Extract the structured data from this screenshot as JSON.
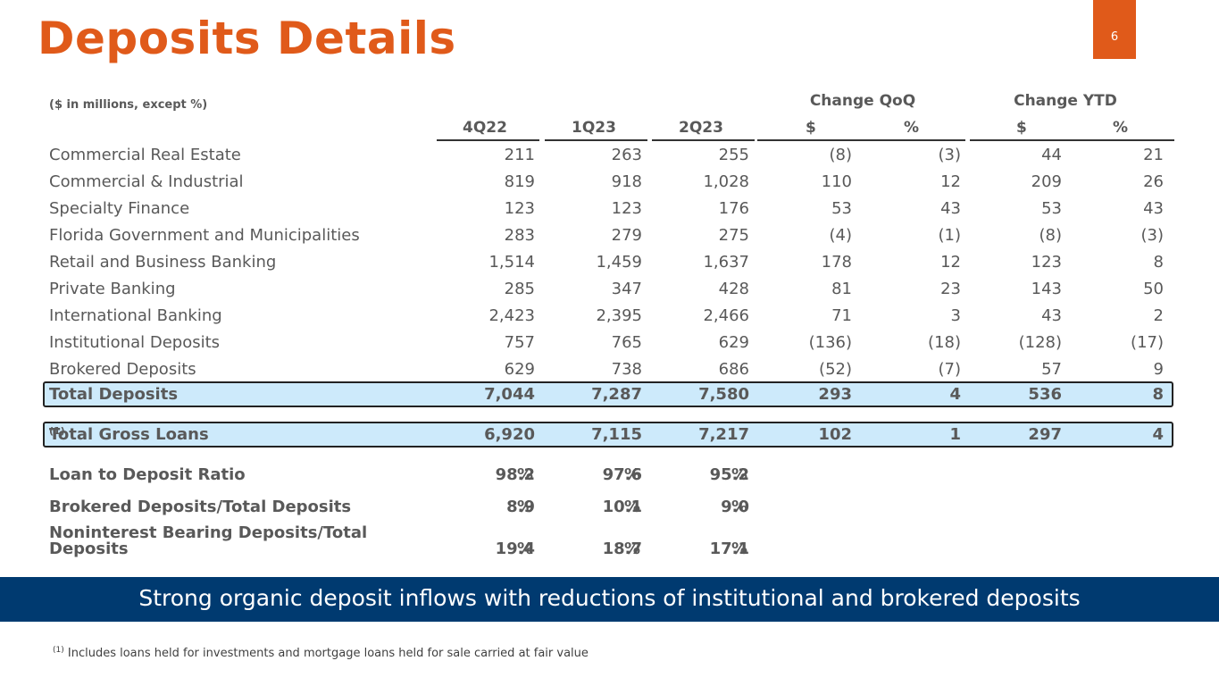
{
  "page": {
    "title": "Deposits Details",
    "page_number": "6",
    "units_note": "($ in millions, except %)"
  },
  "headers": {
    "change_qoq": "Change QoQ",
    "change_ytd": "Change YTD",
    "q1": "4Q22",
    "q2": "1Q23",
    "q3": "2Q23",
    "qoq_dollar": "$",
    "qoq_pct": "%",
    "ytd_dollar": "$",
    "ytd_pct": "%"
  },
  "rows": [
    {
      "label": "Commercial Real Estate",
      "c1": "211",
      "c2": "263",
      "c3": "255",
      "qd": "(8)",
      "qp": "(3)",
      "yd": "44",
      "yp": "21"
    },
    {
      "label": "Commercial & Industrial",
      "c1": "819",
      "c2": "918",
      "c3": "1,028",
      "qd": "110",
      "qp": "12",
      "yd": "209",
      "yp": "26"
    },
    {
      "label": "Specialty Finance",
      "c1": "123",
      "c2": "123",
      "c3": "176",
      "qd": "53",
      "qp": "43",
      "yd": "53",
      "yp": "43"
    },
    {
      "label": "Florida Government and Municipalities",
      "c1": "283",
      "c2": "279",
      "c3": "275",
      "qd": "(4)",
      "qp": "(1)",
      "yd": "(8)",
      "yp": "(3)"
    },
    {
      "label": "Retail and Business Banking",
      "c1": "1,514",
      "c2": "1,459",
      "c3": "1,637",
      "qd": "178",
      "qp": "12",
      "yd": "123",
      "yp": "8"
    },
    {
      "label": "Private Banking",
      "c1": "285",
      "c2": "347",
      "c3": "428",
      "qd": "81",
      "qp": "23",
      "yd": "143",
      "yp": "50"
    },
    {
      "label": "International Banking",
      "c1": "2,423",
      "c2": "2,395",
      "c3": "2,466",
      "qd": "71",
      "qp": "3",
      "yd": "43",
      "yp": "2"
    },
    {
      "label": "Institutional Deposits",
      "c1": "757",
      "c2": "765",
      "c3": "629",
      "qd": "(136)",
      "qp": "(18)",
      "yd": "(128)",
      "yp": "(17)"
    },
    {
      "label": "Brokered Deposits",
      "c1": "629",
      "c2": "738",
      "c3": "686",
      "qd": "(52)",
      "qp": "(7)",
      "yd": "57",
      "yp": "9"
    }
  ],
  "total_deposits": {
    "label": "Total Deposits",
    "c1": "7,044",
    "c2": "7,287",
    "c3": "7,580",
    "qd": "293",
    "qp": "4",
    "yd": "536",
    "yp": "8"
  },
  "total_loans": {
    "label": "Total Gross Loans",
    "sup": "(1)",
    "c1": "6,920",
    "c2": "7,115",
    "c3": "7,217",
    "qd": "102",
    "qp": "1",
    "yd": "297",
    "yp": "4"
  },
  "ratios": [
    {
      "label": "Loan to Deposit Ratio",
      "c1": "98.2",
      "c2": "97.6",
      "c3": "95.2",
      "unit": "%"
    },
    {
      "label": "Brokered Deposits/Total Deposits",
      "c1": "8.9",
      "c2": "10.1",
      "c3": "9.0",
      "unit": "%"
    },
    {
      "label_line1": "Noninterest Bearing Deposits/Total",
      "label_line2": "Deposits",
      "c1": "19.4",
      "c2": "18.7",
      "c3": "17.1",
      "unit": "%"
    }
  ],
  "banner": "Strong organic deposit inflows with reductions of institutional and brokered deposits",
  "footnote": {
    "sup": "(1)",
    "text": "Includes loans held for investments and mortgage loans held for sale carried at fair value"
  },
  "colors": {
    "accent": "#e05a1a",
    "banner": "#003a70",
    "highlight": "#cdeafb"
  }
}
